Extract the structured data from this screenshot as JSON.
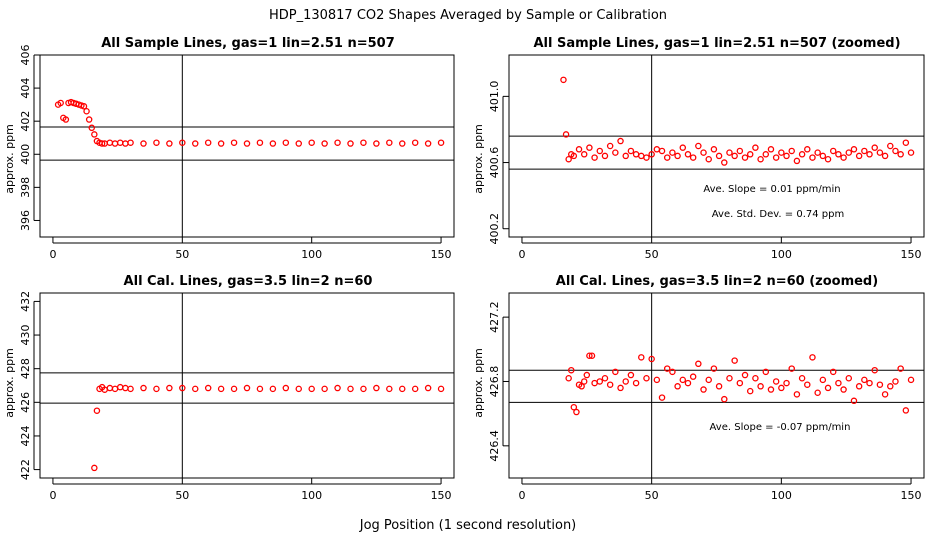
{
  "figure": {
    "suptitle": "HDP_130817  CO2 Shapes Averaged by Sample or Calibration",
    "xlabel": "Jog Position (1 second resolution)"
  },
  "chart_data": [
    {
      "type": "scatter",
      "title": "All Sample Lines, gas=1 lin=2.51 n=507",
      "ylabel": "approx. ppm",
      "xlabel": "",
      "xlim": [
        -5,
        155
      ],
      "ylim": [
        395,
        406
      ],
      "xticks": [
        0,
        50,
        100,
        150
      ],
      "yticks": [
        396,
        398,
        400,
        402,
        404,
        406
      ],
      "grid": false,
      "vline": 50,
      "hlines": [
        401.65,
        399.65
      ],
      "annotations": [],
      "color": "#ff0000",
      "x": [
        2,
        3,
        4,
        5,
        6,
        7,
        8,
        9,
        10,
        11,
        12,
        13,
        14,
        15,
        16,
        17,
        18,
        19,
        20,
        22,
        24,
        26,
        28,
        30,
        35,
        40,
        45,
        50,
        55,
        60,
        65,
        70,
        75,
        80,
        85,
        90,
        95,
        100,
        105,
        110,
        115,
        120,
        125,
        130,
        135,
        140,
        145,
        150
      ],
      "y": [
        403.0,
        403.1,
        402.2,
        402.1,
        403.1,
        403.15,
        403.1,
        403.05,
        403.0,
        402.95,
        402.9,
        402.6,
        402.1,
        401.6,
        401.2,
        400.8,
        400.7,
        400.65,
        400.65,
        400.7,
        400.65,
        400.7,
        400.65,
        400.7,
        400.65,
        400.7,
        400.65,
        400.7,
        400.65,
        400.7,
        400.65,
        400.7,
        400.65,
        400.7,
        400.65,
        400.7,
        400.65,
        400.7,
        400.65,
        400.7,
        400.65,
        400.7,
        400.65,
        400.7,
        400.65,
        400.7,
        400.65,
        400.7
      ]
    },
    {
      "type": "scatter",
      "title": "All Sample Lines, gas=1 lin=2.51 n=507 (zoomed)",
      "ylabel": "approx. ppm",
      "xlabel": "",
      "xlim": [
        -5,
        155
      ],
      "ylim": [
        400.15,
        401.25
      ],
      "xticks": [
        0,
        50,
        100,
        150
      ],
      "yticks": [
        400.2,
        400.6,
        401.0
      ],
      "grid": false,
      "vline": 50,
      "hlines": [
        400.76,
        400.56
      ],
      "annotations": [
        "Ave. Slope =  0.01  ppm/min",
        "Ave. Std. Dev. =  0.74  ppm"
      ],
      "color": "#ff0000",
      "x": [
        16,
        17,
        18,
        19,
        20,
        22,
        24,
        26,
        28,
        30,
        32,
        34,
        36,
        38,
        40,
        42,
        44,
        46,
        48,
        50,
        52,
        54,
        56,
        58,
        60,
        62,
        64,
        66,
        68,
        70,
        72,
        74,
        76,
        78,
        80,
        82,
        84,
        86,
        88,
        90,
        92,
        94,
        96,
        98,
        100,
        102,
        104,
        106,
        108,
        110,
        112,
        114,
        116,
        118,
        120,
        122,
        124,
        126,
        128,
        130,
        132,
        134,
        136,
        138,
        140,
        142,
        144,
        146,
        148,
        150
      ],
      "y": [
        401.1,
        400.77,
        400.62,
        400.65,
        400.64,
        400.68,
        400.65,
        400.69,
        400.63,
        400.67,
        400.64,
        400.7,
        400.66,
        400.73,
        400.64,
        400.67,
        400.65,
        400.64,
        400.63,
        400.65,
        400.68,
        400.67,
        400.63,
        400.66,
        400.64,
        400.69,
        400.65,
        400.63,
        400.7,
        400.66,
        400.62,
        400.68,
        400.64,
        400.6,
        400.66,
        400.64,
        400.67,
        400.63,
        400.65,
        400.69,
        400.62,
        400.65,
        400.68,
        400.63,
        400.66,
        400.64,
        400.67,
        400.61,
        400.65,
        400.68,
        400.63,
        400.66,
        400.64,
        400.62,
        400.67,
        400.65,
        400.63,
        400.66,
        400.68,
        400.64,
        400.67,
        400.65,
        400.69,
        400.66,
        400.64,
        400.7,
        400.67,
        400.65,
        400.72,
        400.66
      ]
    },
    {
      "type": "scatter",
      "title": "All Cal. Lines, gas=3.5 lin=2 n=60",
      "ylabel": "approx. ppm",
      "xlabel": "",
      "xlim": [
        -5,
        155
      ],
      "ylim": [
        421.5,
        432.5
      ],
      "xticks": [
        0,
        50,
        100,
        150
      ],
      "yticks": [
        422,
        424,
        426,
        428,
        430,
        432
      ],
      "grid": false,
      "vline": 50,
      "hlines": [
        427.75,
        425.95
      ],
      "annotations": [],
      "color": "#ff0000",
      "x": [
        16,
        17,
        18,
        19,
        20,
        22,
        24,
        26,
        28,
        30,
        35,
        40,
        45,
        50,
        55,
        60,
        65,
        70,
        75,
        80,
        85,
        90,
        95,
        100,
        105,
        110,
        115,
        120,
        125,
        130,
        135,
        140,
        145,
        150
      ],
      "y": [
        422.1,
        425.5,
        426.8,
        426.9,
        426.75,
        426.85,
        426.8,
        426.9,
        426.85,
        426.8,
        426.85,
        426.8,
        426.85,
        426.85,
        426.8,
        426.85,
        426.8,
        426.8,
        426.85,
        426.8,
        426.8,
        426.85,
        426.8,
        426.8,
        426.8,
        426.85,
        426.8,
        426.8,
        426.85,
        426.8,
        426.8,
        426.8,
        426.85,
        426.8
      ]
    },
    {
      "type": "scatter",
      "title": "All Cal. Lines, gas=3.5 lin=2 n=60 (zoomed)",
      "ylabel": "approx. ppm",
      "xlabel": "",
      "xlim": [
        -5,
        155
      ],
      "ylim": [
        426.2,
        427.35
      ],
      "xticks": [
        0,
        50,
        100,
        150
      ],
      "yticks": [
        426.4,
        426.8,
        427.2
      ],
      "grid": false,
      "vline": 50,
      "hlines": [
        426.87,
        426.67
      ],
      "annotations": [
        "Ave. Slope =  -0.07  ppm/min"
      ],
      "color": "#ff0000",
      "x": [
        18,
        19,
        20,
        21,
        22,
        23,
        24,
        25,
        26,
        27,
        28,
        30,
        32,
        34,
        36,
        38,
        40,
        42,
        44,
        46,
        48,
        50,
        52,
        54,
        56,
        58,
        60,
        62,
        64,
        66,
        68,
        70,
        72,
        74,
        76,
        78,
        80,
        82,
        84,
        86,
        88,
        90,
        92,
        94,
        96,
        98,
        100,
        102,
        104,
        106,
        108,
        110,
        112,
        114,
        116,
        118,
        120,
        122,
        124,
        126,
        128,
        130,
        132,
        134,
        136,
        138,
        140,
        142,
        144,
        146,
        148,
        150
      ],
      "y": [
        426.82,
        426.87,
        426.64,
        426.61,
        426.78,
        426.77,
        426.8,
        426.84,
        426.96,
        426.96,
        426.79,
        426.8,
        426.82,
        426.78,
        426.86,
        426.76,
        426.8,
        426.84,
        426.79,
        426.95,
        426.82,
        426.94,
        426.81,
        426.7,
        426.88,
        426.86,
        426.77,
        426.81,
        426.79,
        426.83,
        426.91,
        426.75,
        426.81,
        426.88,
        426.77,
        426.69,
        426.82,
        426.93,
        426.79,
        426.84,
        426.74,
        426.82,
        426.77,
        426.86,
        426.75,
        426.8,
        426.76,
        426.79,
        426.88,
        426.72,
        426.82,
        426.78,
        426.95,
        426.73,
        426.81,
        426.76,
        426.86,
        426.79,
        426.75,
        426.82,
        426.68,
        426.77,
        426.81,
        426.79,
        426.87,
        426.78,
        426.72,
        426.77,
        426.8,
        426.88,
        426.62,
        426.81
      ]
    }
  ]
}
